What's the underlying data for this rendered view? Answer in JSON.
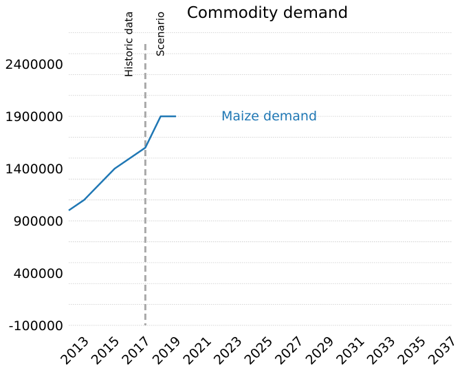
{
  "chart_data": {
    "type": "line",
    "title": "Commodity demand",
    "xlabel": "",
    "ylabel": "",
    "x": [
      2012,
      2013,
      2015,
      2017,
      2018,
      2019
    ],
    "series": [
      {
        "name": "Maize demand",
        "values": [
          1000000,
          1100000,
          1400000,
          1600000,
          1900000,
          1900000
        ]
      }
    ],
    "xlim": [
      2012,
      2037
    ],
    "ylim": [
      -100000,
      2750000
    ],
    "xticks": [
      "2013",
      "2015",
      "2017",
      "2019",
      "2021",
      "2023",
      "2025",
      "2027",
      "2029",
      "2031",
      "2033",
      "2035",
      "2037"
    ],
    "yticks": [
      "-100000",
      "400000",
      "900000",
      "1400000",
      "1900000",
      "2400000"
    ],
    "grid": true,
    "annotations": {
      "divider_year": 2017,
      "left_label": "Historic data",
      "right_label": "Scenario"
    },
    "colors": {
      "series": "#1f77b4",
      "divider": "#a9a9a9",
      "grid": "#c8c8c8"
    }
  }
}
